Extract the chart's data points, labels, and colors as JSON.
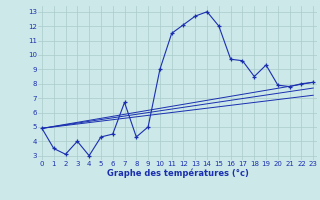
{
  "xlabel": "Graphe des températures (°c)",
  "bg_color": "#cce8e8",
  "grid_color": "#aacccc",
  "line_color": "#1a2fb0",
  "ylim": [
    2.7,
    13.4
  ],
  "xlim": [
    -0.3,
    23.3
  ],
  "yticks": [
    3,
    4,
    5,
    6,
    7,
    8,
    9,
    10,
    11,
    12,
    13
  ],
  "xticks": [
    0,
    1,
    2,
    3,
    4,
    5,
    6,
    7,
    8,
    9,
    10,
    11,
    12,
    13,
    14,
    15,
    16,
    17,
    18,
    19,
    20,
    21,
    22,
    23
  ],
  "main_x": [
    0,
    1,
    2,
    3,
    4,
    5,
    6,
    7,
    8,
    9,
    10,
    11,
    12,
    13,
    14,
    15,
    16,
    17,
    18,
    19,
    20,
    21,
    22,
    23
  ],
  "main_y": [
    4.9,
    3.5,
    3.1,
    4.0,
    3.0,
    4.3,
    4.5,
    6.7,
    4.3,
    5.0,
    9.0,
    11.5,
    12.1,
    12.7,
    13.0,
    12.0,
    9.7,
    9.6,
    8.5,
    9.3,
    7.9,
    7.8,
    8.0,
    8.1
  ],
  "line1_x": [
    0,
    23
  ],
  "line1_y": [
    4.9,
    8.1
  ],
  "line2_x": [
    0,
    23
  ],
  "line2_y": [
    4.9,
    7.7
  ],
  "line3_x": [
    0,
    23
  ],
  "line3_y": [
    4.9,
    7.2
  ],
  "xlabel_fontsize": 6.0,
  "tick_fontsize": 5.0
}
